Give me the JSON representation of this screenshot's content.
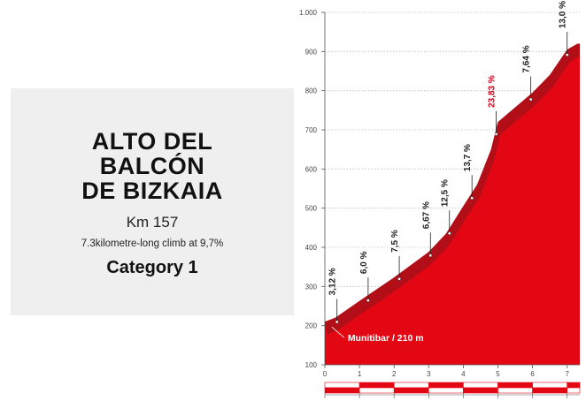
{
  "info": {
    "name_lines": [
      "ALTO DEL",
      "BALCÓN",
      "DE BIZKAIA"
    ],
    "km": "Km 157",
    "description": "7.3kilometre-long climb at 9,7%",
    "category": "Category 1"
  },
  "chart_data": {
    "type": "area",
    "title": "",
    "xlabel": "",
    "ylabel": "",
    "xlim": [
      0,
      7.3
    ],
    "ylim": [
      100,
      1000
    ],
    "x_ticks": [
      "0",
      "1",
      "2",
      "3",
      "4",
      "5",
      "6",
      "7"
    ],
    "y_ticks": [
      "100",
      "200",
      "300",
      "400",
      "500",
      "600",
      "700",
      "800",
      "900",
      "1.000"
    ],
    "grid": "horizontal-dotted",
    "colors": {
      "fill": "#e30613",
      "shade": "#a8101a",
      "hot_label": "#d0021b"
    },
    "profile": {
      "x": [
        0,
        0.3,
        1.0,
        2.0,
        3.0,
        3.5,
        4.0,
        4.4,
        4.8,
        5.0,
        6.0,
        6.5,
        7.0,
        7.3
      ],
      "y": [
        210,
        220,
        263,
        323,
        388,
        435,
        505,
        560,
        650,
        720,
        795,
        840,
        905,
        920
      ]
    },
    "summit_elevation": 920,
    "gradients": [
      {
        "km": 0.35,
        "label": "3,12 %",
        "hot": false
      },
      {
        "km": 1.25,
        "label": "6,0 %",
        "hot": false
      },
      {
        "km": 2.15,
        "label": "7,5 %",
        "hot": false
      },
      {
        "km": 3.05,
        "label": "6,67 %",
        "hot": false
      },
      {
        "km": 3.6,
        "label": "12,5 %",
        "hot": false
      },
      {
        "km": 4.25,
        "label": "13,7 %",
        "hot": false
      },
      {
        "km": 4.95,
        "label": "23,83 %",
        "hot": true
      },
      {
        "km": 5.95,
        "label": "7,64 %",
        "hot": false
      },
      {
        "km": 7.0,
        "label": "13,0 %",
        "hot": false
      }
    ],
    "start_annotation": "Munitibar / 210 m"
  }
}
